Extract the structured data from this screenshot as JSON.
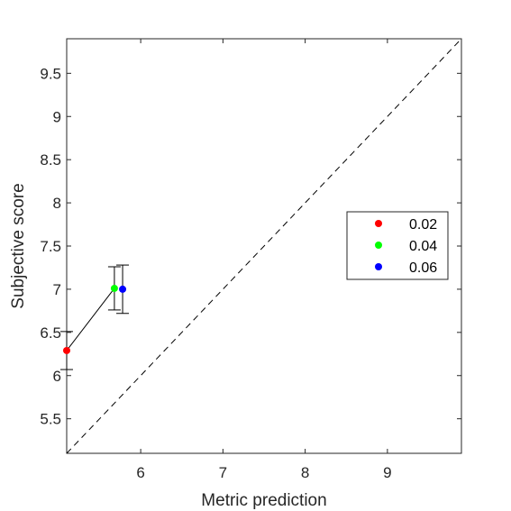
{
  "chart_data": {
    "type": "scatter",
    "title": "",
    "xlabel": "Metric prediction",
    "ylabel": "Subjective score",
    "xlim": [
      5.1,
      9.9
    ],
    "ylim": [
      5.1,
      9.9
    ],
    "x_ticks": [
      "6",
      "7",
      "8",
      "9"
    ],
    "x_tick_values": [
      6,
      7,
      8,
      9
    ],
    "y_ticks": [
      "5.5",
      "6",
      "6.5",
      "7",
      "7.5",
      "8",
      "8.5",
      "9",
      "9.5"
    ],
    "y_tick_values": [
      5.5,
      6,
      6.5,
      7,
      7.5,
      8,
      8.5,
      9,
      9.5
    ],
    "grid": false,
    "legend_position": "right",
    "reference_line": {
      "style": "dashed",
      "from": [
        5.1,
        5.1
      ],
      "to": [
        9.9,
        9.9
      ]
    },
    "connector": {
      "color": "#000000",
      "points": [
        [
          5.1,
          6.29
        ],
        [
          5.68,
          7.01
        ]
      ]
    },
    "series": [
      {
        "name": "0.02",
        "color": "#ff0000",
        "x": 5.1,
        "y": 6.29,
        "err_low": 6.07,
        "err_high": 6.51
      },
      {
        "name": "0.04",
        "color": "#00ff00",
        "x": 5.68,
        "y": 7.01,
        "err_low": 6.76,
        "err_high": 7.26
      },
      {
        "name": "0.06",
        "color": "#0000ff",
        "x": 5.78,
        "y": 7.0,
        "err_low": 6.72,
        "err_high": 7.28
      }
    ]
  }
}
